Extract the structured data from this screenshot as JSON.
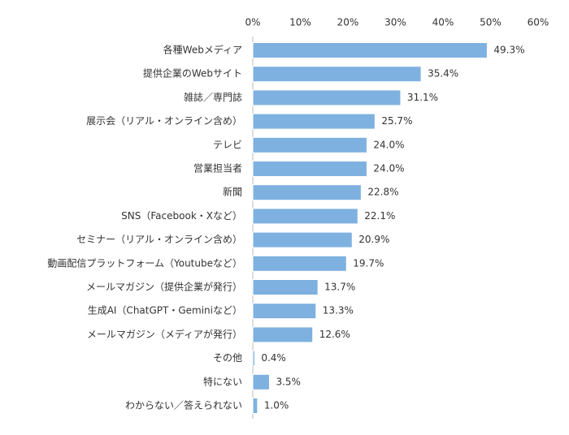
{
  "chart_data": {
    "type": "bar",
    "orientation": "horizontal",
    "color": "#7eb1e0",
    "categories": [
      "各種Webメディア",
      "提供企業のWebサイト",
      "雑誌／専門誌",
      "展示会（リアル・オンライン含め）",
      "テレビ",
      "営業担当者",
      "新聞",
      "SNS（Facebook・Xなど）",
      "セミナー（リアル・オンライン含め）",
      "動画配信プラットフォーム（Youtubeなど）",
      "メールマガジン（提供企業が発行）",
      "生成AI（ChatGPT・Geminiなど）",
      "メールマガジン（メディアが発行）",
      "その他",
      "特にない",
      "わからない／答えられない"
    ],
    "values": [
      49.3,
      35.4,
      31.1,
      25.7,
      24.0,
      24.0,
      22.8,
      22.1,
      20.9,
      19.7,
      13.7,
      13.3,
      12.6,
      0.4,
      3.5,
      1.0
    ],
    "value_labels": [
      "49.3%",
      "35.4%",
      "31.1%",
      "25.7%",
      "24.0%",
      "24.0%",
      "22.8%",
      "22.1%",
      "20.9%",
      "19.7%",
      "13.7%",
      "13.3%",
      "12.6%",
      "0.4%",
      "3.5%",
      "1.0%"
    ],
    "xlim": [
      0,
      60
    ],
    "xticks": [
      {
        "value": 0,
        "label": "0%"
      },
      {
        "value": 10,
        "label": "10%"
      },
      {
        "value": 20,
        "label": "20%"
      },
      {
        "value": 30,
        "label": "30%"
      },
      {
        "value": 40,
        "label": "40%"
      },
      {
        "value": 50,
        "label": "50%"
      },
      {
        "value": 60,
        "label": "60%"
      }
    ]
  }
}
